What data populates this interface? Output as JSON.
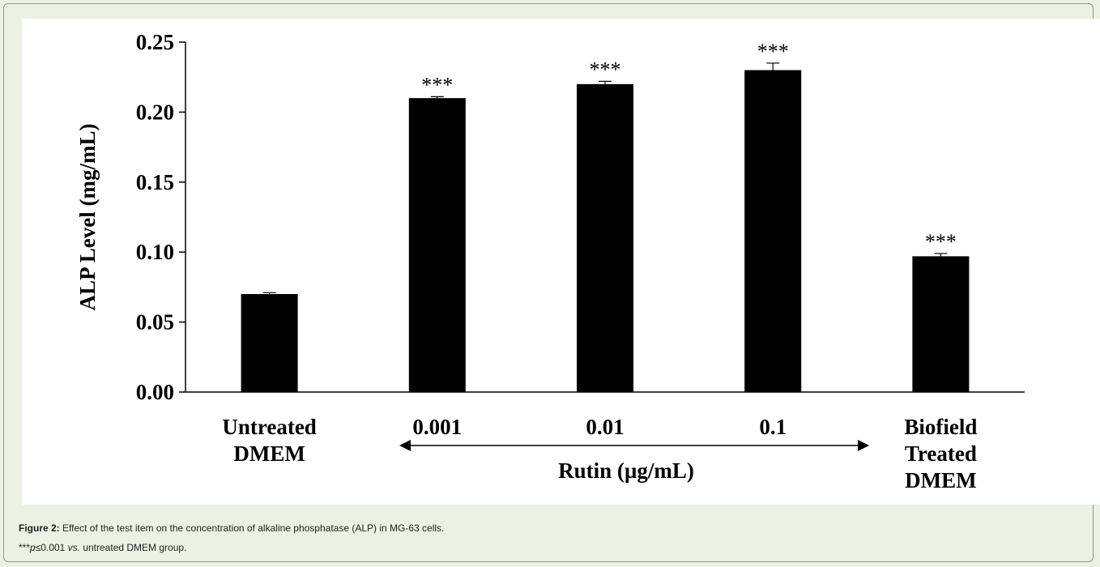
{
  "chart_data": {
    "type": "bar",
    "categories": [
      [
        "Untreated",
        "DMEM"
      ],
      [
        "0.001"
      ],
      [
        "0.01"
      ],
      [
        "0.1"
      ],
      [
        "Biofield",
        "Treated",
        "DMEM"
      ]
    ],
    "values": [
      0.07,
      0.21,
      0.22,
      0.23,
      0.097
    ],
    "errors": [
      0.001,
      0.001,
      0.002,
      0.005,
      0.002
    ],
    "annotations": [
      "",
      "***",
      "***",
      "***",
      "***"
    ],
    "ylabel": "ALP Level (mg/mL)",
    "group_label": "Rutin (µg/mL)",
    "ylim": [
      0,
      0.25
    ],
    "yticks": [
      "0.00",
      "0.05",
      "0.10",
      "0.15",
      "0.20",
      "0.25"
    ],
    "bar_color": "#000000",
    "grid": false
  },
  "caption": {
    "label": "Figure 2:",
    "text": " Effect of the test item on the concentration of alkaline phosphatase (ALP) in MG-63 cells.",
    "note_prefix": "***",
    "note_p": "p",
    "note_mid": "≤0.001 ",
    "note_vs": "vs.",
    "note_end": " untreated DMEM group."
  }
}
